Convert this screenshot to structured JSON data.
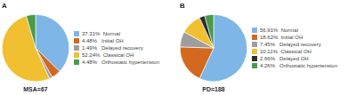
{
  "chart_data": [
    {
      "type": "pie",
      "title": "MSA=67",
      "annotations": [
        "A"
      ],
      "categories": [
        "37.31%  Normal",
        "4.48%   Initial OH",
        "1.49%   Delayed recovery",
        "52.24%  Classical OH",
        "4.48%   Orthostatic hypertension"
      ],
      "values": [
        37.31,
        4.48,
        1.49,
        52.24,
        4.48
      ],
      "colors": [
        "#7eb6e8",
        "#d2691e",
        "#9e9e9e",
        "#f0c030",
        "#4a9a4a"
      ],
      "legend": "right"
    },
    {
      "type": "pie",
      "title": "PD=188",
      "annotations": [
        "B"
      ],
      "categories": [
        "56.91%  Normal",
        "18.62%  Initial OH",
        "7.45%   Delayed recovery",
        "10.11%  Classical OH",
        "2.66%   Delayed OH",
        "4.26%   Orthostatic hypertension"
      ],
      "values": [
        56.91,
        18.62,
        7.45,
        10.11,
        2.66,
        4.26
      ],
      "colors": [
        "#7eb6e8",
        "#d2691e",
        "#9e9e9e",
        "#f0c030",
        "#2e2e2e",
        "#4a9a4a"
      ],
      "legend": "right"
    }
  ]
}
